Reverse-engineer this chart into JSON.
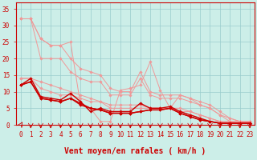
{
  "bg_color": "#cceee8",
  "grid_color": "#99cccc",
  "xlabel": "Vent moyen/en rafales ( km/h )",
  "xlim": [
    -0.5,
    23.5
  ],
  "ylim": [
    0,
    37
  ],
  "yticks": [
    0,
    5,
    10,
    15,
    20,
    25,
    30,
    35
  ],
  "xticks": [
    0,
    1,
    2,
    3,
    4,
    5,
    6,
    7,
    8,
    9,
    10,
    11,
    12,
    13,
    14,
    15,
    16,
    17,
    18,
    19,
    20,
    21,
    22,
    23
  ],
  "lines_light": [
    {
      "x": [
        0,
        1,
        2,
        3,
        4,
        5,
        6,
        7,
        8,
        9,
        10,
        11,
        12,
        13,
        14,
        15,
        16,
        17,
        18,
        19,
        20,
        21,
        22,
        23
      ],
      "y": [
        32,
        32,
        26,
        24,
        24,
        20,
        17,
        16,
        15,
        11,
        10,
        10,
        16,
        10,
        9,
        9,
        9,
        8,
        7,
        6,
        4,
        2,
        1,
        1
      ]
    },
    {
      "x": [
        0,
        1,
        2,
        3,
        4,
        5,
        6,
        7,
        8,
        9,
        10,
        11,
        12,
        13,
        14,
        15,
        16,
        17,
        18,
        19,
        20,
        21,
        22,
        23
      ],
      "y": [
        32,
        32,
        20,
        20,
        20,
        16,
        14,
        13,
        13,
        9,
        9,
        9,
        14,
        9,
        8,
        8,
        8,
        7,
        6,
        5,
        3,
        2,
        1,
        1
      ]
    },
    {
      "x": [
        0,
        1,
        2,
        3,
        4,
        5,
        6,
        7,
        8,
        9,
        10,
        11,
        12,
        13,
        14,
        15,
        16,
        17,
        18,
        19,
        20,
        21,
        22,
        23
      ],
      "y": [
        14,
        14,
        13,
        12,
        11,
        10,
        9,
        8,
        7,
        6,
        6,
        6,
        6,
        5,
        5,
        5,
        5,
        4,
        3,
        2,
        1,
        1,
        1,
        1
      ]
    },
    {
      "x": [
        0,
        1,
        2,
        3,
        4,
        5,
        6,
        7,
        8,
        9,
        10,
        11,
        12,
        13,
        14,
        15,
        16,
        17,
        18,
        19,
        20,
        21,
        22,
        23
      ],
      "y": [
        14,
        14,
        11,
        10,
        9,
        9,
        8,
        7,
        7,
        5,
        5,
        5,
        5,
        5,
        5,
        5,
        4,
        4,
        3,
        2,
        1,
        1,
        1,
        1
      ]
    }
  ],
  "line_light_special": {
    "x": [
      0,
      1,
      2,
      3,
      4,
      5,
      6,
      7,
      8,
      9,
      10,
      11,
      12,
      13,
      14,
      15,
      16,
      17,
      18,
      19,
      20,
      21,
      22,
      23
    ],
    "y": [
      32,
      32,
      26,
      24,
      24,
      25,
      6,
      5,
      1,
      1,
      10.5,
      11,
      12,
      19,
      10.5,
      5,
      9,
      8,
      6,
      5,
      3,
      1,
      1,
      1
    ]
  },
  "lines_dark": [
    {
      "x": [
        0,
        1,
        2,
        3,
        4,
        5,
        6,
        7,
        8,
        9,
        10,
        11,
        12,
        13,
        14,
        15,
        16,
        17,
        18,
        19,
        20,
        21,
        22,
        23
      ],
      "y": [
        12,
        14,
        8.5,
        8,
        7.5,
        9.5,
        7,
        4,
        5,
        4,
        4,
        4,
        6.5,
        5,
        5,
        5.5,
        4,
        3,
        2,
        1,
        0.5,
        0.5,
        0.5,
        0.5
      ]
    },
    {
      "x": [
        0,
        1,
        2,
        3,
        4,
        5,
        6,
        7,
        8,
        9,
        10,
        11,
        12,
        13,
        14,
        15,
        16,
        17,
        18,
        19,
        20,
        21,
        22,
        23
      ],
      "y": [
        12,
        13,
        8,
        7.5,
        7,
        8,
        6.5,
        5,
        4.5,
        3.5,
        3.5,
        3.5,
        4,
        4.5,
        4.5,
        5,
        3.5,
        2.5,
        1.5,
        1,
        0.5,
        0.5,
        0.5,
        0.5
      ]
    },
    {
      "x": [
        0,
        1,
        2,
        3,
        4,
        5,
        6,
        7,
        8,
        9,
        10,
        11,
        12,
        13,
        14,
        15,
        16,
        17,
        18,
        19,
        20,
        21,
        22,
        23
      ],
      "y": [
        12,
        13,
        8,
        7.5,
        7,
        8,
        6,
        5,
        4.5,
        3.5,
        3.5,
        3.5,
        4,
        4.5,
        4.5,
        5,
        3.5,
        2.5,
        1.5,
        1,
        0.5,
        0.5,
        0.5,
        0.5
      ]
    }
  ],
  "color_light": "#f09898",
  "color_dark": "#cc0000",
  "arrow_color": "#cc0000",
  "marker": "D",
  "marker_size": 1.8,
  "linewidth_light": 0.7,
  "linewidth_dark": 1.0,
  "tick_fontsize": 5.5,
  "label_fontsize": 7
}
